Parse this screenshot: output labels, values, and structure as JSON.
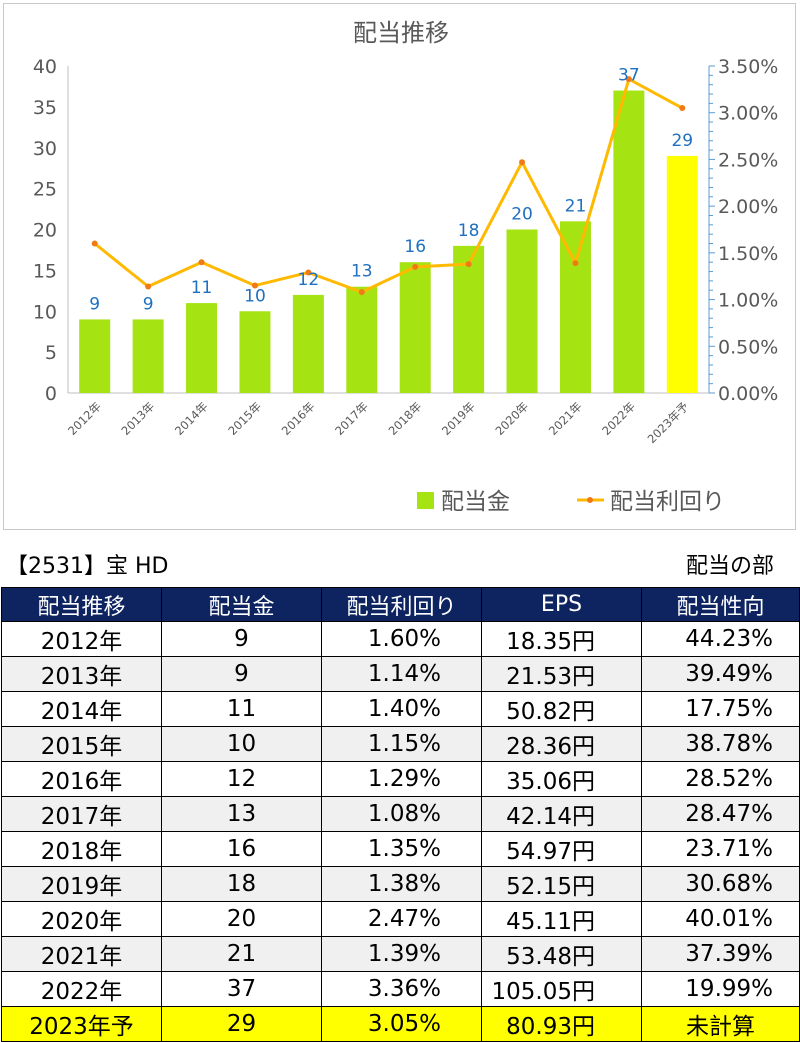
{
  "chart_data": {
    "type": "bar",
    "title": "配当推移",
    "categories": [
      "2012年",
      "2013年",
      "2014年",
      "2015年",
      "2016年",
      "2017年",
      "2018年",
      "2019年",
      "2020年",
      "2021年",
      "2022年",
      "2023年予"
    ],
    "series": [
      {
        "name": "配当金",
        "kind": "bar",
        "axis": "left",
        "values": [
          9,
          9,
          11,
          10,
          12,
          13,
          16,
          18,
          20,
          21,
          37,
          29
        ],
        "color": "#a6e312",
        "forecast_color": "#ffff00"
      },
      {
        "name": "配当利回り",
        "kind": "line",
        "axis": "right",
        "values": [
          1.6,
          1.14,
          1.4,
          1.15,
          1.29,
          1.08,
          1.35,
          1.38,
          2.47,
          1.39,
          3.36,
          3.05
        ],
        "color": "#ffb900",
        "marker_color": "#f07a16"
      }
    ],
    "left_axis": {
      "ylim": [
        0,
        40
      ],
      "ticks": [
        "0",
        "5",
        "10",
        "15",
        "20",
        "25",
        "30",
        "35",
        "40"
      ]
    },
    "right_axis": {
      "ylim": [
        0,
        3.5
      ],
      "ticks": [
        "0.00%",
        "0.50%",
        "1.00%",
        "1.50%",
        "2.00%",
        "2.50%",
        "3.00%",
        "3.50%"
      ]
    },
    "data_labels": [
      "9",
      "9",
      "11",
      "10",
      "12",
      "13",
      "16",
      "18",
      "20",
      "21",
      "37",
      "29"
    ],
    "legend_position": "bottom-right",
    "grid": false,
    "label_color": "#1f70c0"
  },
  "stock_title": "【2531】宝 HD",
  "section_title": "配当の部",
  "table": {
    "headers": [
      "配当推移",
      "配当金",
      "配当利回り",
      "EPS",
      "配当性向"
    ],
    "rows": [
      [
        "2012年",
        "9",
        "1.60%",
        "18.35円",
        "44.23%"
      ],
      [
        "2013年",
        "9",
        "1.14%",
        "21.53円",
        "39.49%"
      ],
      [
        "2014年",
        "11",
        "1.40%",
        "50.82円",
        "17.75%"
      ],
      [
        "2015年",
        "10",
        "1.15%",
        "28.36円",
        "38.78%"
      ],
      [
        "2016年",
        "12",
        "1.29%",
        "35.06円",
        "28.52%"
      ],
      [
        "2017年",
        "13",
        "1.08%",
        "42.14円",
        "28.47%"
      ],
      [
        "2018年",
        "16",
        "1.35%",
        "54.97円",
        "23.71%"
      ],
      [
        "2019年",
        "18",
        "1.38%",
        "52.15円",
        "30.68%"
      ],
      [
        "2020年",
        "20",
        "2.47%",
        "45.11円",
        "40.01%"
      ],
      [
        "2021年",
        "21",
        "1.39%",
        "53.48円",
        "37.39%"
      ],
      [
        "2022年",
        "37",
        "3.36%",
        "105.05円",
        "19.99%"
      ],
      [
        "2023年予",
        "29",
        "3.05%",
        "80.93円",
        "未計算"
      ]
    ]
  }
}
